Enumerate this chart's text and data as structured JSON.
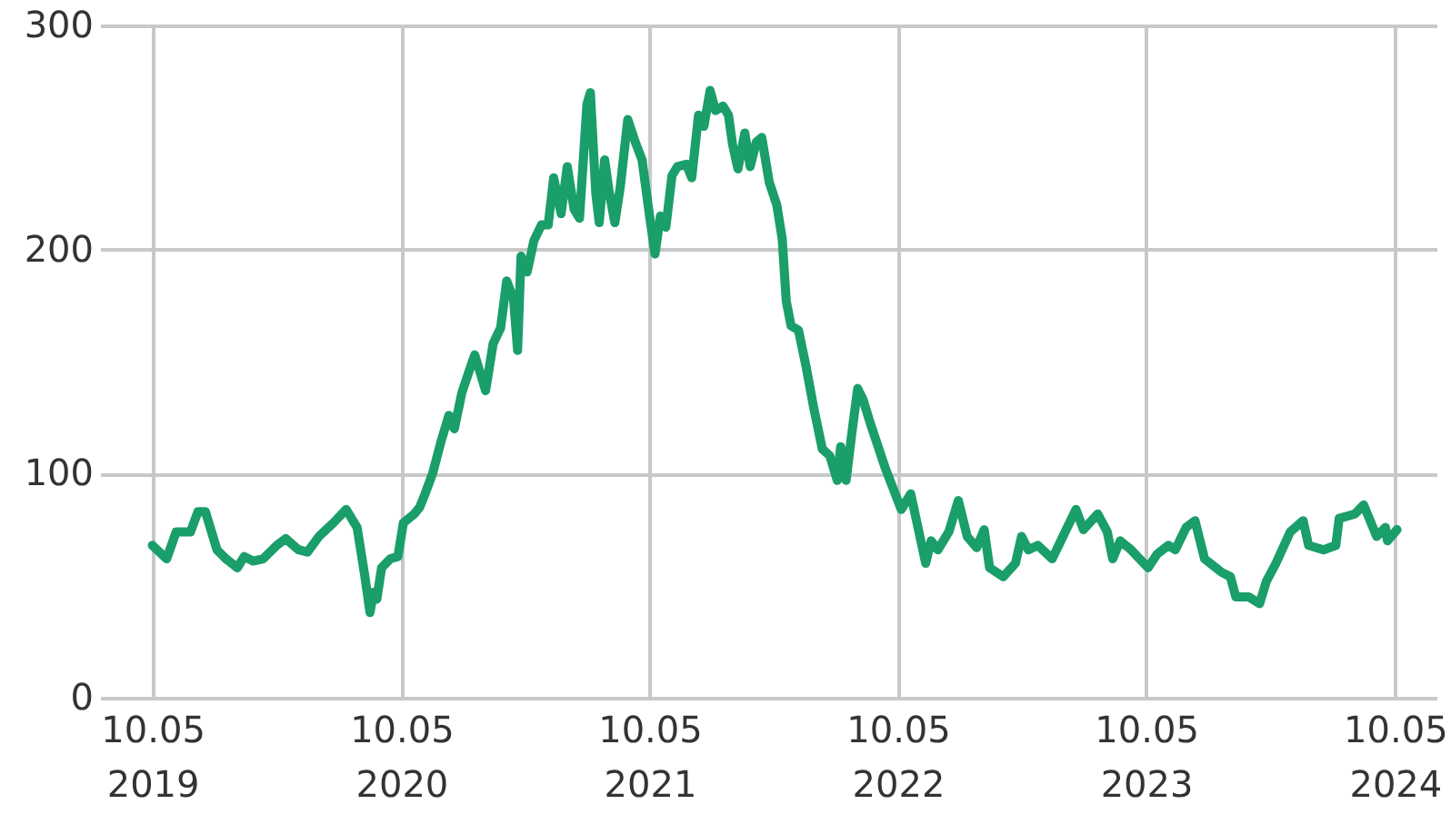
{
  "chart_data": {
    "type": "line",
    "xlim": [
      "2019-07-20",
      "2024-12-05"
    ],
    "ylim": [
      0,
      300
    ],
    "yticks": [
      0,
      100,
      200,
      300
    ],
    "xticks": [
      {
        "value": "2019-10-05",
        "label": "10.05\n2019"
      },
      {
        "value": "2020-10-05",
        "label": "10.05\n2020"
      },
      {
        "value": "2021-10-05",
        "label": "10.05\n2021"
      },
      {
        "value": "2022-10-05",
        "label": "10.05\n2022"
      },
      {
        "value": "2023-10-05",
        "label": "10.05\n2023"
      },
      {
        "value": "2024-10-05",
        "label": "10.05\n2024"
      }
    ],
    "grid": true,
    "line_style": "solid",
    "marker": "none",
    "x": [
      "2019-10-05",
      "2019-10-26",
      "2019-11-09",
      "2019-11-30",
      "2019-12-11",
      "2019-12-22",
      "2020-01-08",
      "2020-01-21",
      "2020-02-07",
      "2020-02-17",
      "2020-03-01",
      "2020-03-16",
      "2020-04-05",
      "2020-04-18",
      "2020-05-07",
      "2020-05-20",
      "2020-06-06",
      "2020-06-27",
      "2020-07-16",
      "2020-08-01",
      "2020-08-12",
      "2020-08-20",
      "2020-08-25",
      "2020-08-30",
      "2020-09-06",
      "2020-09-19",
      "2020-09-30",
      "2020-10-08",
      "2020-10-24",
      "2020-11-01",
      "2020-11-09",
      "2020-11-20",
      "2020-12-03",
      "2020-12-14",
      "2020-12-22",
      "2021-01-02",
      "2021-01-13",
      "2021-01-21",
      "2021-01-29",
      "2021-02-06",
      "2021-02-17",
      "2021-02-28",
      "2021-03-09",
      "2021-03-19",
      "2021-03-25",
      "2021-03-30",
      "2021-04-08",
      "2021-04-18",
      "2021-04-29",
      "2021-05-09",
      "2021-05-17",
      "2021-05-28",
      "2021-06-06",
      "2021-06-16",
      "2021-06-24",
      "2021-07-05",
      "2021-07-10",
      "2021-07-18",
      "2021-07-23",
      "2021-07-31",
      "2021-08-07",
      "2021-08-15",
      "2021-08-23",
      "2021-09-03",
      "2021-09-14",
      "2021-09-24",
      "2021-10-05",
      "2021-10-13",
      "2021-10-21",
      "2021-10-29",
      "2021-11-07",
      "2021-11-15",
      "2021-11-28",
      "2021-12-06",
      "2021-12-16",
      "2021-12-24",
      "2022-01-02",
      "2022-01-10",
      "2022-01-21",
      "2022-01-29",
      "2022-02-04",
      "2022-02-12",
      "2022-02-22",
      "2022-03-02",
      "2022-03-11",
      "2022-03-19",
      "2022-03-30",
      "2022-04-10",
      "2022-04-18",
      "2022-04-24",
      "2022-05-01",
      "2022-05-12",
      "2022-05-23",
      "2022-06-03",
      "2022-06-16",
      "2022-06-27",
      "2022-07-08",
      "2022-07-13",
      "2022-07-21",
      "2022-07-29",
      "2022-08-07",
      "2022-08-15",
      "2022-08-20",
      "2022-08-25",
      "2022-09-16",
      "2022-10-10",
      "2022-10-24",
      "2022-11-15",
      "2022-11-23",
      "2022-12-03",
      "2022-12-19",
      "2023-01-02",
      "2023-01-15",
      "2023-01-29",
      "2023-02-09",
      "2023-02-17",
      "2023-03-09",
      "2023-03-27",
      "2023-04-05",
      "2023-04-15",
      "2023-04-29",
      "2023-05-20",
      "2023-06-08",
      "2023-06-24",
      "2023-07-05",
      "2023-07-26",
      "2023-08-09",
      "2023-08-17",
      "2023-08-28",
      "2023-09-13",
      "2023-10-08",
      "2023-10-21",
      "2023-11-07",
      "2023-11-17",
      "2023-12-03",
      "2023-12-16",
      "2023-12-30",
      "2024-01-24",
      "2024-02-06",
      "2024-02-14",
      "2024-03-04",
      "2024-03-20",
      "2024-03-30",
      "2024-04-13",
      "2024-05-04",
      "2024-05-23",
      "2024-05-31",
      "2024-06-22",
      "2024-07-10",
      "2024-07-15",
      "2024-08-07",
      "2024-08-20",
      "2024-09-08",
      "2024-09-21",
      "2024-09-24",
      "2024-10-08"
    ],
    "series": [
      {
        "color": "#1a9e6a",
        "values": [
          68,
          62,
          74,
          74,
          83,
          83,
          66,
          62,
          58,
          63,
          61,
          62,
          68,
          71,
          66,
          65,
          72,
          78,
          84,
          76,
          55,
          38,
          47,
          44,
          58,
          62,
          63,
          78,
          82,
          85,
          91,
          100,
          115,
          126,
          120,
          136,
          146,
          153,
          145,
          137,
          158,
          165,
          186,
          178,
          155,
          197,
          190,
          204,
          211,
          211,
          232,
          216,
          237,
          218,
          214,
          265,
          270,
          225,
          212,
          240,
          225,
          212,
          228,
          258,
          248,
          240,
          215,
          198,
          215,
          210,
          233,
          237,
          238,
          232,
          260,
          255,
          271,
          262,
          264,
          260,
          247,
          236,
          252,
          237,
          248,
          250,
          230,
          220,
          205,
          177,
          166,
          164,
          148,
          130,
          111,
          108,
          97,
          112,
          97,
          117,
          138,
          133,
          128,
          123,
          103,
          84,
          91,
          60,
          70,
          66,
          74,
          88,
          72,
          67,
          75,
          58,
          54,
          60,
          72,
          66,
          68,
          62,
          74,
          84,
          75,
          82,
          74,
          62,
          70,
          66,
          58,
          64,
          68,
          66,
          76,
          79,
          62,
          56,
          54,
          45,
          45,
          42,
          52,
          60,
          74,
          79,
          68,
          66,
          68,
          80,
          82,
          86,
          72,
          76,
          70,
          75
        ]
      }
    ]
  }
}
